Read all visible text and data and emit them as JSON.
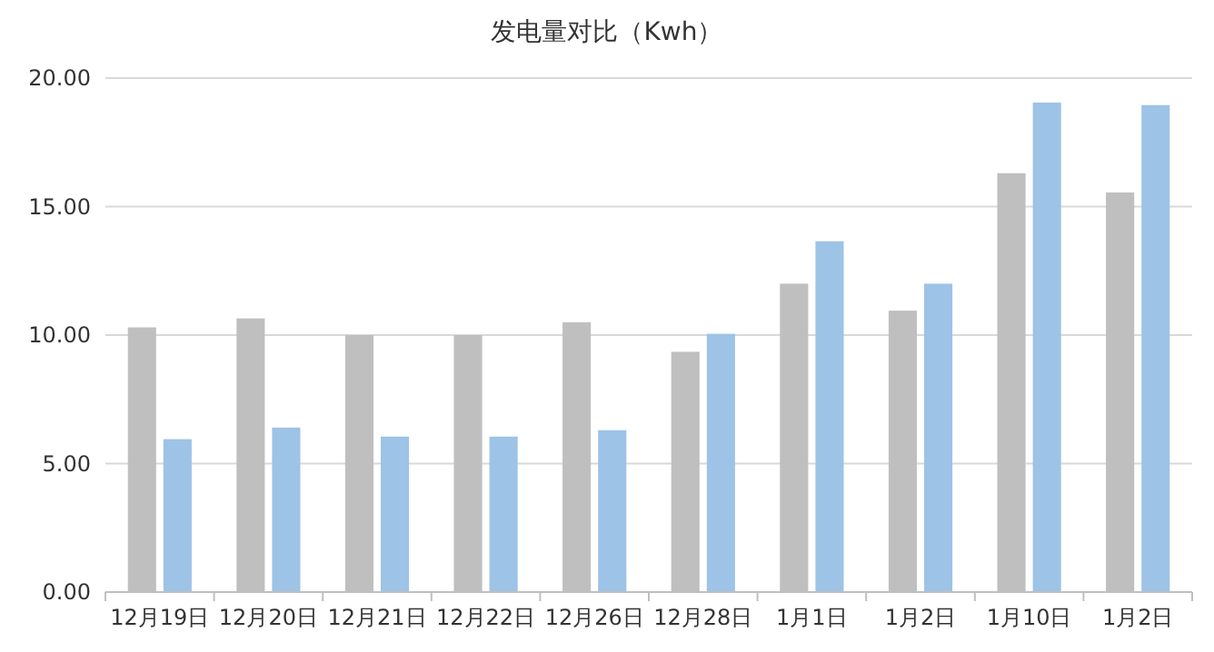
{
  "chart_data": {
    "type": "bar",
    "title": "发电量对比（Kwh）",
    "categories": [
      "12月19日",
      "12月20日",
      "12月21日",
      "12月22日",
      "12月26日",
      "12月28日",
      "1月1日",
      "1月2日",
      "1月10日",
      "1月2日"
    ],
    "series": [
      {
        "color": "#bfbfbf",
        "values": [
          10.3,
          10.65,
          10.0,
          10.0,
          10.5,
          9.35,
          12.0,
          10.95,
          16.3,
          15.55
        ]
      },
      {
        "color": "#9dc3e6",
        "values": [
          5.95,
          6.4,
          6.05,
          6.05,
          6.3,
          10.05,
          13.65,
          12.0,
          19.05,
          18.95
        ]
      }
    ],
    "ylim": [
      0,
      20
    ],
    "yticks": [
      {
        "value": 0,
        "label": "0.00"
      },
      {
        "value": 5,
        "label": "5.00"
      },
      {
        "value": 10,
        "label": "10.00"
      },
      {
        "value": 15,
        "label": "15.00"
      },
      {
        "value": 20,
        "label": "20.00"
      }
    ],
    "grid": "y"
  }
}
